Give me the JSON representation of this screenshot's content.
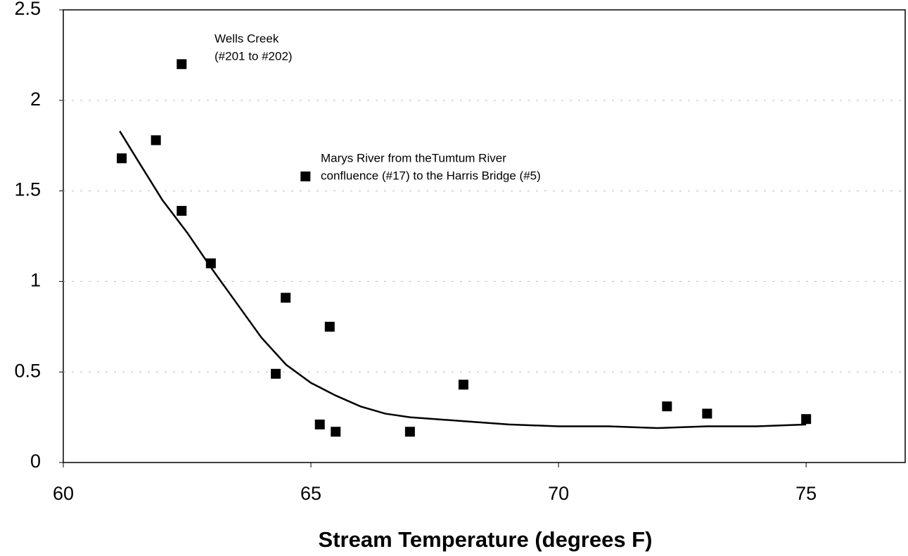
{
  "chart_data": {
    "type": "scatter",
    "xlabel": "Stream Temperature (degrees F)",
    "xlim": [
      60,
      77
    ],
    "xticks": [
      60,
      65,
      70,
      75
    ],
    "ylim": [
      0,
      2.5
    ],
    "yticks": [
      0,
      0.5,
      1,
      1.5,
      2,
      2.5
    ],
    "grid": true,
    "annotations": [
      {
        "lines": [
          "Wells Creek",
          "(#201 to #202)"
        ]
      },
      {
        "lines": [
          "Marys River from theTumtum River",
          "confluence (#17) to the Harris Bridge (#5)"
        ]
      }
    ],
    "series": [
      {
        "type": "scatter",
        "color": "#000000",
        "x": [
          61.18,
          61.87,
          62.39,
          62.39,
          62.98,
          64.49,
          64.29,
          65.38,
          64.89,
          65.18,
          65.5,
          67.0,
          68.08,
          72.19,
          73.0,
          75.0
        ],
        "values": [
          1.68,
          1.78,
          2.2,
          1.39,
          1.1,
          0.91,
          0.49,
          0.75,
          1.58,
          0.21,
          0.17,
          0.17,
          0.43,
          0.31,
          0.27,
          0.24
        ]
      },
      {
        "type": "line",
        "color": "#000000",
        "x": [
          61.14,
          61.5,
          62,
          62.5,
          63,
          63.5,
          64,
          64.5,
          65,
          65.5,
          66,
          66.5,
          67,
          68,
          69,
          70,
          71,
          72,
          73,
          74,
          75
        ],
        "values": [
          1.83,
          1.67,
          1.45,
          1.27,
          1.07,
          0.88,
          0.69,
          0.54,
          0.44,
          0.37,
          0.31,
          0.27,
          0.25,
          0.23,
          0.21,
          0.2,
          0.2,
          0.19,
          0.2,
          0.2,
          0.21
        ]
      }
    ]
  }
}
